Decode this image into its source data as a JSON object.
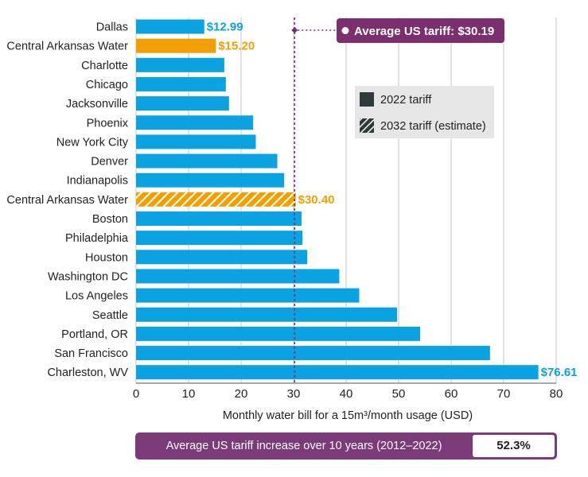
{
  "colors": {
    "bar": "#0aa2e0",
    "highlight": "#f2a000",
    "average_line": "#7b2d6e",
    "callout_bg": "#7b2f6e",
    "grid": "#d9d9d9",
    "legend_bg": "#e6e6e6",
    "legend_swatch": "#2f3b3a"
  },
  "chart_data": {
    "type": "bar",
    "orientation": "horizontal",
    "categories": [
      "Dallas",
      "Central Arkansas Water",
      "Charlotte",
      "Chicago",
      "Jacksonville",
      "Phoenix",
      "New York City",
      "Denver",
      "Indianapolis",
      "Central Arkansas Water",
      "Boston",
      "Philadelphia",
      "Houston",
      "Washington DC",
      "Los Angeles",
      "Seattle",
      "Portland, OR",
      "San Francisco",
      "Charleston, WV"
    ],
    "values": [
      12.99,
      15.2,
      16.8,
      17.1,
      17.7,
      22.3,
      22.8,
      26.9,
      28.2,
      30.4,
      31.5,
      31.7,
      32.6,
      38.7,
      42.5,
      49.7,
      54.1,
      67.4,
      76.61
    ],
    "bar_styles": [
      "normal",
      "highlight",
      "normal",
      "normal",
      "normal",
      "normal",
      "normal",
      "normal",
      "normal",
      "highlight-hatched",
      "normal",
      "normal",
      "normal",
      "normal",
      "normal",
      "normal",
      "normal",
      "normal",
      "normal"
    ],
    "data_labels": [
      "$12.99",
      "$15.20",
      "",
      "",
      "",
      "",
      "",
      "",
      "",
      "$30.40",
      "",
      "",
      "",
      "",
      "",
      "",
      "",
      "",
      "$76.61"
    ],
    "xlabel": "Monthly water bill for a 15m³/month usage (USD)",
    "xlim": [
      0,
      80
    ],
    "xticks": [
      0,
      10,
      20,
      30,
      40,
      50,
      60,
      70,
      80
    ],
    "grid": true,
    "legend": {
      "placement": "top-right",
      "entries": [
        "2022 tariff",
        "2032 tariff (estimate)"
      ]
    },
    "average": {
      "value": 30.19,
      "label": "Average US tariff: $30.19"
    }
  },
  "summary": {
    "label": "Average US tariff increase over 10 years (2012–2022)",
    "value": "52.3%"
  }
}
